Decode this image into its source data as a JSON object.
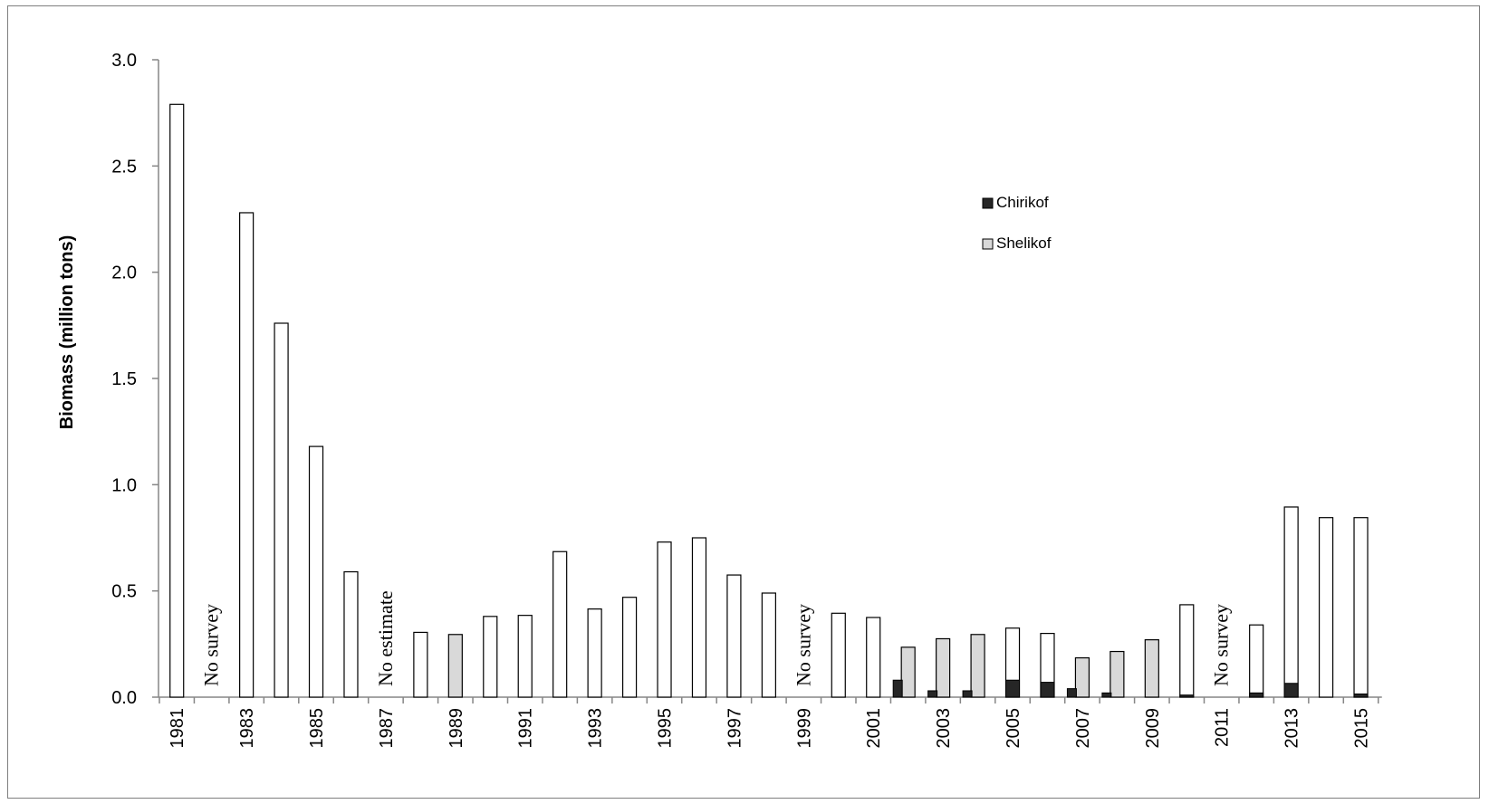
{
  "chart_data": {
    "type": "bar",
    "title": "",
    "xlabel": "",
    "ylabel": "Biomass (million tons)",
    "ylim": [
      0,
      3.0
    ],
    "yticks": [
      "0.0",
      "0.5",
      "1.0",
      "1.5",
      "2.0",
      "2.5",
      "3.0"
    ],
    "ytick_values": [
      0,
      0.5,
      1.0,
      1.5,
      2.0,
      2.5,
      3.0
    ],
    "categories": [
      "1981",
      "1982",
      "1983",
      "1984",
      "1985",
      "1986",
      "1987",
      "1988",
      "1989",
      "1990",
      "1991",
      "1992",
      "1993",
      "1994",
      "1995",
      "1996",
      "1997",
      "1998",
      "1999",
      "2000",
      "2001",
      "2002",
      "2003",
      "2004",
      "2005",
      "2006",
      "2007",
      "2008",
      "2009",
      "2010",
      "2011",
      "2012",
      "2013",
      "2014",
      "2015"
    ],
    "xtick_labels": [
      "1981",
      "1983",
      "1985",
      "1987",
      "1989",
      "1991",
      "1993",
      "1995",
      "1997",
      "1999",
      "2001",
      "2003",
      "2005",
      "2007",
      "2009",
      "2011",
      "2013",
      "2015"
    ],
    "grid": false,
    "legend_position": "top-right",
    "series": [
      {
        "name": "Chirikof",
        "color": "#262626",
        "values": [
          null,
          null,
          null,
          null,
          null,
          null,
          null,
          null,
          null,
          null,
          null,
          null,
          null,
          null,
          null,
          null,
          null,
          null,
          null,
          null,
          null,
          0.08,
          0.03,
          0.03,
          0.08,
          0.07,
          0.04,
          0.02,
          null,
          0.01,
          null,
          0.02,
          0.065,
          null,
          0.015
        ]
      },
      {
        "name": "Shelikof",
        "color": "#d9d9d9",
        "values": [
          null,
          null,
          null,
          null,
          null,
          null,
          null,
          null,
          0.295,
          null,
          null,
          null,
          null,
          null,
          null,
          null,
          null,
          null,
          null,
          null,
          null,
          0.235,
          0.275,
          0.295,
          null,
          null,
          0.185,
          0.215,
          0.27,
          null,
          null,
          null,
          null,
          null,
          null
        ]
      },
      {
        "name": "",
        "color": "#ffffff",
        "values": [
          2.79,
          null,
          2.28,
          1.76,
          1.18,
          0.59,
          null,
          0.305,
          null,
          0.38,
          0.385,
          0.685,
          0.415,
          0.47,
          0.73,
          0.75,
          0.575,
          0.49,
          null,
          0.395,
          0.375,
          null,
          null,
          null,
          0.325,
          0.3,
          null,
          null,
          null,
          0.435,
          null,
          0.34,
          0.895,
          0.845,
          0.845
        ]
      }
    ],
    "annotations": [
      {
        "year": "1982",
        "text": "No survey"
      },
      {
        "year": "1987",
        "text": "No estimate"
      },
      {
        "year": "1999",
        "text": "No survey"
      },
      {
        "year": "2011",
        "text": "No survey"
      }
    ]
  }
}
